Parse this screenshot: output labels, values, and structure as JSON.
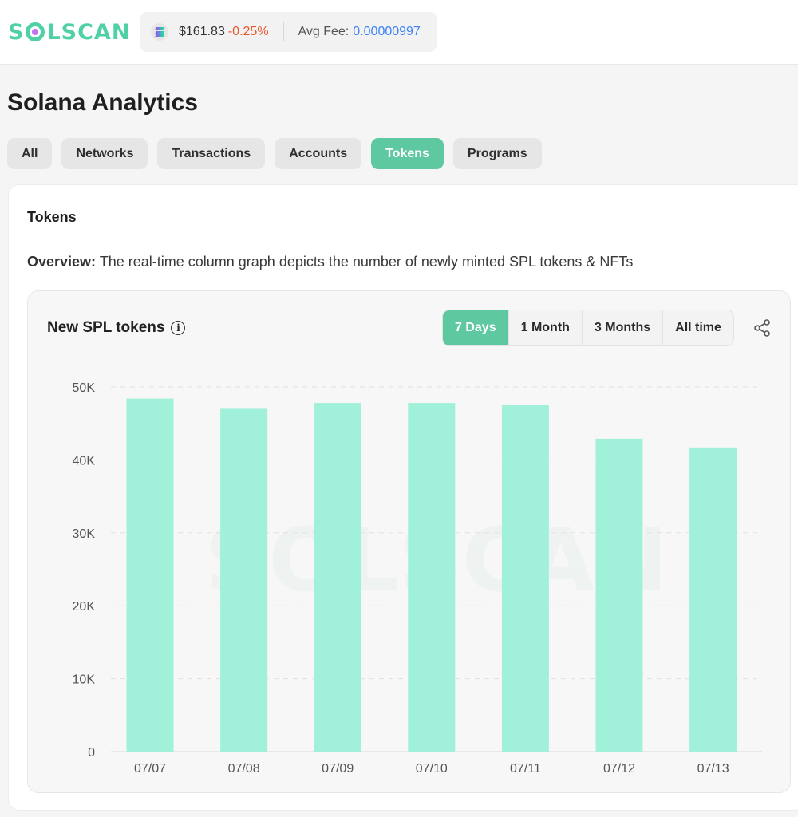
{
  "header": {
    "logo_text": "SOLSCAN",
    "price": "$161.83",
    "price_change": "-0.25%",
    "fee_label": "Avg Fee:",
    "fee_value": "0.00000997"
  },
  "page": {
    "title": "Solana Analytics",
    "tabs": [
      {
        "label": "All",
        "active": false
      },
      {
        "label": "Networks",
        "active": false
      },
      {
        "label": "Transactions",
        "active": false
      },
      {
        "label": "Accounts",
        "active": false
      },
      {
        "label": "Tokens",
        "active": true
      },
      {
        "label": "Programs",
        "active": false
      }
    ]
  },
  "section": {
    "title": "Tokens",
    "overview_label": "Overview:",
    "overview_text": " The real-time column graph depicts the number of newly minted SPL tokens & NFTs"
  },
  "chart_card": {
    "title": "New SPL tokens",
    "info_icon": "info-icon",
    "share_icon": "share-icon",
    "ranges": [
      {
        "label": "7 Days",
        "active": true
      },
      {
        "label": "1 Month",
        "active": false
      },
      {
        "label": "3 Months",
        "active": false
      },
      {
        "label": "All time",
        "active": false
      }
    ]
  },
  "colors": {
    "accent": "#5ec8a1",
    "bar": "#a0f0da",
    "negative": "#e8572c",
    "fee": "#3b82f6"
  },
  "chart_data": {
    "type": "bar",
    "title": "New SPL tokens",
    "categories": [
      "07/07",
      "07/08",
      "07/09",
      "07/10",
      "07/11",
      "07/12",
      "07/13"
    ],
    "values": [
      48400,
      47000,
      47800,
      47800,
      47500,
      42900,
      41700
    ],
    "y_ticks": [
      "0",
      "10K",
      "20K",
      "30K",
      "40K",
      "50K"
    ],
    "ylim": [
      0,
      50000
    ],
    "grid": true,
    "xlabel": "",
    "ylabel": ""
  }
}
